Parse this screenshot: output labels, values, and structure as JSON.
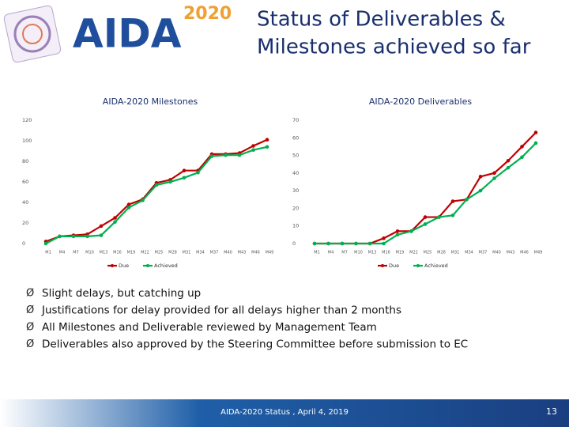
{
  "header": {
    "logo_text": "AIDA",
    "logo_year": "2020",
    "title_lines": [
      "Status of Deliverables &",
      "Milestones achieved so far"
    ]
  },
  "chart_data": [
    {
      "type": "line",
      "title": "AIDA-2020 Milestones",
      "categories": [
        "M1",
        "M4",
        "M7",
        "M10",
        "M13",
        "M16",
        "M19",
        "M22",
        "M25",
        "M28",
        "M31",
        "M34",
        "M37",
        "M40",
        "M43",
        "M46",
        "M49"
      ],
      "series": [
        {
          "name": "Due",
          "color": "#c00000",
          "values": [
            2,
            7,
            8,
            9,
            17,
            25,
            38,
            43,
            59,
            62,
            71,
            71,
            87,
            87,
            88,
            95,
            101
          ]
        },
        {
          "name": "Achieved",
          "color": "#00b050",
          "values": [
            0,
            7,
            7,
            7,
            8,
            21,
            35,
            42,
            57,
            60,
            64,
            69,
            85,
            86,
            86,
            91,
            94
          ]
        }
      ],
      "ylim": [
        0,
        120
      ],
      "yticks": [
        0,
        20,
        40,
        60,
        80,
        100,
        120
      ],
      "legend": "bottom"
    },
    {
      "type": "line",
      "title": "AIDA-2020 Deliverables",
      "categories": [
        "M1",
        "M4",
        "M7",
        "M10",
        "M13",
        "M16",
        "M19",
        "M22",
        "M25",
        "M28",
        "M31",
        "M34",
        "M37",
        "M40",
        "M43",
        "M46",
        "M49"
      ],
      "series": [
        {
          "name": "Due",
          "color": "#c00000",
          "values": [
            0,
            0,
            0,
            0,
            0,
            3,
            7,
            7,
            15,
            15,
            24,
            25,
            38,
            40,
            47,
            55,
            63
          ]
        },
        {
          "name": "Achieved",
          "color": "#00b050",
          "values": [
            0,
            0,
            0,
            0,
            0,
            0,
            5,
            7,
            11,
            15,
            16,
            25,
            30,
            37,
            43,
            49,
            57
          ]
        }
      ],
      "ylim": [
        0,
        70
      ],
      "yticks": [
        0,
        10,
        20,
        30,
        40,
        50,
        60,
        70
      ],
      "legend": "bottom"
    }
  ],
  "bullets": [
    "Slight delays, but catching up",
    "Justifications for delay provided for all delays higher than 2 months",
    "All Milestones and Deliverable reviewed by Management Team",
    "Deliverables also approved by the Steering Committee before submission to EC"
  ],
  "footer": {
    "text": "AIDA-2020 Status , April 4, 2019",
    "page": "13"
  }
}
